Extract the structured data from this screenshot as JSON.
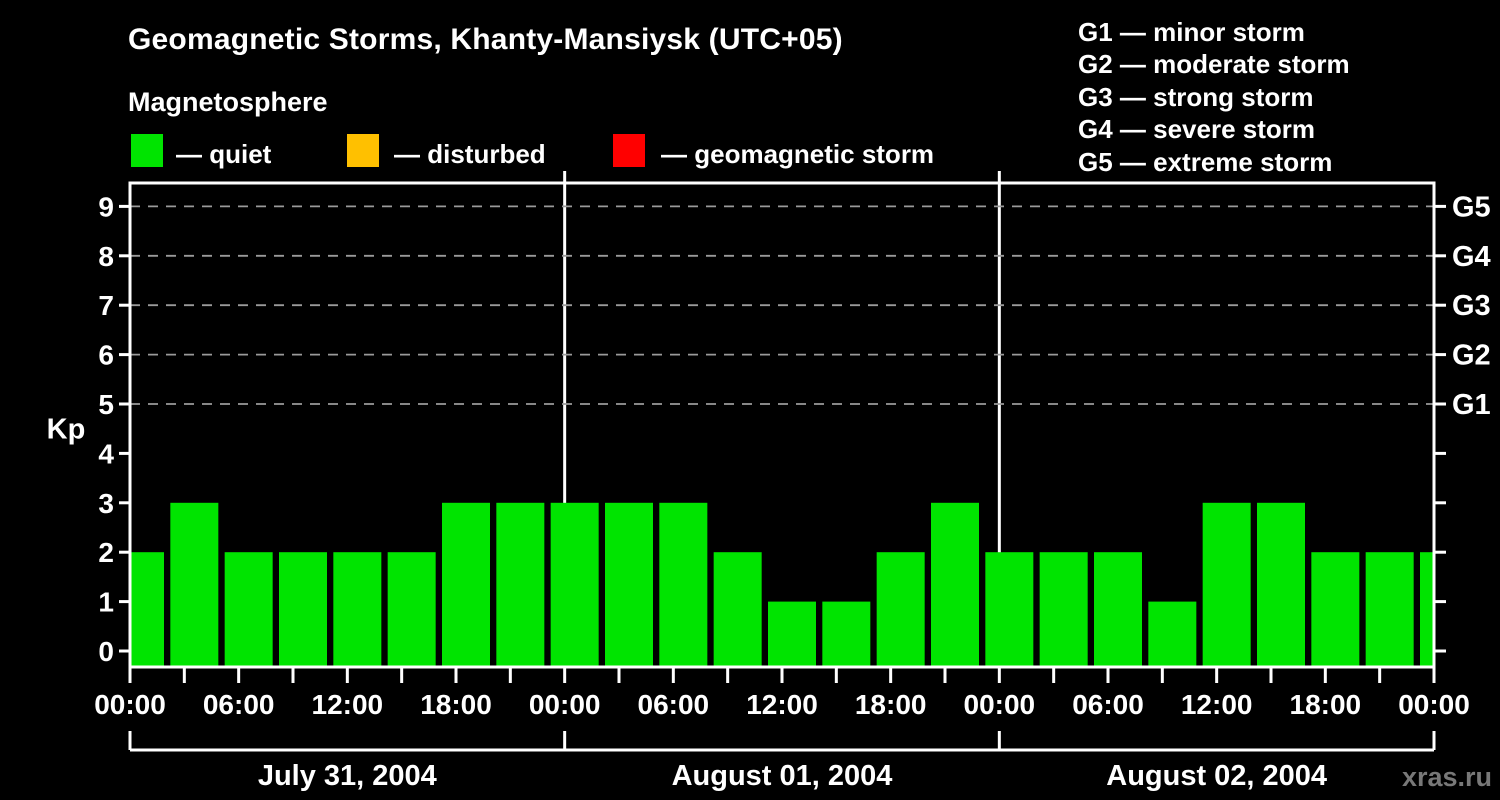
{
  "header": {
    "title": "Geomagnetic Storms, Khanty-Mansiysk (UTC+05)",
    "subtitle": "Magnetosphere"
  },
  "legend": {
    "items": [
      {
        "key": "quiet",
        "color": "#00e400",
        "label": "— quiet"
      },
      {
        "key": "disturbed",
        "color": "#ffc000",
        "label": "— disturbed"
      },
      {
        "key": "storm",
        "color": "#ff0000",
        "label": "— geomagnetic storm"
      }
    ]
  },
  "gscale": {
    "items": [
      {
        "text": "G1 — minor storm"
      },
      {
        "text": "G2 — moderate storm"
      },
      {
        "text": "G3 — strong storm"
      },
      {
        "text": "G4 — severe storm"
      },
      {
        "text": "G5 — extreme storm"
      }
    ]
  },
  "footer": {
    "watermark": "xras.ru"
  },
  "chart_data": {
    "type": "bar",
    "title": "Geomagnetic Storms, Khanty-Mansiysk (UTC+05)",
    "subtitle": "Magnetosphere",
    "ylabel": "Kp",
    "ylim": [
      0,
      9
    ],
    "yticks": [
      0,
      1,
      2,
      3,
      4,
      5,
      6,
      7,
      8,
      9
    ],
    "right_axis_labels": [
      {
        "kp": 5,
        "label": "G1"
      },
      {
        "kp": 6,
        "label": "G2"
      },
      {
        "kp": 7,
        "label": "G3"
      },
      {
        "kp": 8,
        "label": "G4"
      },
      {
        "kp": 9,
        "label": "G5"
      }
    ],
    "grid_dashed_at_kp": [
      5,
      6,
      7,
      8,
      9
    ],
    "interval_hours": 3,
    "x_tick_every_hours": 3,
    "x_label_cycle_6h": [
      "00:00",
      "06:00",
      "12:00",
      "18:00"
    ],
    "x_end_label": "00:00",
    "days": [
      {
        "date": "July 31, 2004",
        "values": [
          2,
          3,
          2,
          2,
          2,
          2,
          3,
          3
        ]
      },
      {
        "date": "August 01, 2004",
        "values": [
          3,
          3,
          3,
          2,
          1,
          1,
          2,
          3
        ]
      },
      {
        "date": "August 02, 2004",
        "values": [
          2,
          2,
          2,
          1,
          3,
          3,
          2,
          2
        ]
      }
    ],
    "next_interval_edge_value": 2,
    "bar_colors": {
      "quiet": "#00e400",
      "disturbed": "#ffc000",
      "storm": "#ff0000"
    },
    "color_rule": {
      "quiet_max_kp": 3,
      "disturbed_kp": 4,
      "storm_min_kp": 5
    },
    "legend_position": "top",
    "grid": "dashed horizontal lines at Kp 5–9 only"
  }
}
